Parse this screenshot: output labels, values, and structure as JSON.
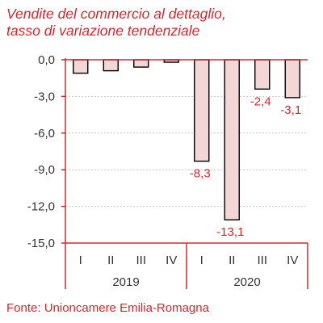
{
  "chart_data": {
    "type": "bar",
    "title": "Vendite del commercio al dettaglio,",
    "subtitle": "tasso di variazione tendenziale",
    "source": "Fonte: Unioncamere Emilia-Romagna",
    "categories": [
      "I",
      "II",
      "III",
      "IV",
      "I",
      "II",
      "III",
      "IV"
    ],
    "groups": [
      {
        "label": "2019",
        "count": 4
      },
      {
        "label": "2020",
        "count": 4
      }
    ],
    "values": [
      -1.1,
      -0.9,
      -0.6,
      -0.2,
      -8.3,
      -13.1,
      -2.4,
      -3.1
    ],
    "data_labels": [
      "",
      "",
      "",
      "",
      "-8,3",
      "-13,1",
      "-2,4",
      "-3,1"
    ],
    "yticks": [
      "0,0",
      "-3,0",
      "-6,0",
      "-9,0",
      "-12,0",
      "-15,0"
    ],
    "ytick_values": [
      0,
      -3,
      -6,
      -9,
      -12,
      -15
    ],
    "ylim": [
      -15,
      0
    ],
    "grid": true,
    "colors": {
      "accent": "#d3282e",
      "bar_fill": "#f3d6d6",
      "bar_stroke": "#000000",
      "grid": "#c8c8c8",
      "text": "#333333"
    }
  }
}
